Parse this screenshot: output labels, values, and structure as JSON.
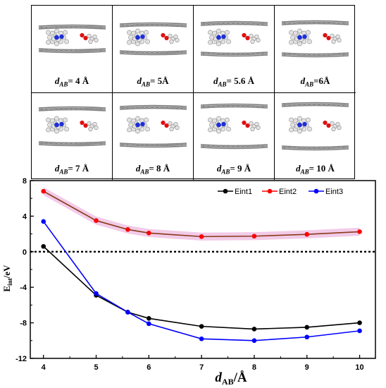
{
  "panels": [
    {
      "prefix": "d",
      "sub": "AB",
      "value": "= 4 Å"
    },
    {
      "prefix": "d",
      "sub": "AB",
      "value": "= 5Å"
    },
    {
      "prefix": "d",
      "sub": "AB",
      "value": "= 5.6 Å"
    },
    {
      "prefix": "d",
      "sub": "AB",
      "value": "=6Å"
    },
    {
      "prefix": "d",
      "sub": "AB",
      "value": "= 7 Å"
    },
    {
      "prefix": "d",
      "sub": "AB",
      "value": "= 8 Å"
    },
    {
      "prefix": "d",
      "sub": "AB",
      "value": "= 9 Å"
    },
    {
      "prefix": "d",
      "sub": "AB",
      "value": "= 10 Å"
    }
  ],
  "chart_data": {
    "type": "line",
    "x": [
      4,
      5,
      5.6,
      6,
      7,
      8,
      9,
      10
    ],
    "series": [
      {
        "name": "Eint1",
        "color": "#000000",
        "values": [
          0.6,
          -4.9,
          -6.8,
          -7.5,
          -8.4,
          -8.7,
          -8.5,
          -8.0
        ]
      },
      {
        "name": "Eint2",
        "color": "#ff0000",
        "values": [
          6.8,
          3.5,
          2.5,
          2.1,
          1.7,
          1.75,
          1.95,
          2.25
        ]
      },
      {
        "name": "Eint3",
        "color": "#0000ff",
        "values": [
          3.4,
          -4.7,
          -6.8,
          -8.1,
          -9.8,
          -10.0,
          -9.6,
          -8.9
        ]
      }
    ],
    "xlabel_main": "d",
    "xlabel_sub": "AB",
    "xlabel_unit": "/Å",
    "ylabel_main": "E",
    "ylabel_sub": "int",
    "ylabel_unit": "/eV",
    "xticks": [
      "4",
      "5",
      "6",
      "7",
      "8",
      "9",
      "10"
    ],
    "yticks": [
      "8",
      "4",
      "0",
      "-4",
      "-8",
      "-12"
    ],
    "xlim": [
      4,
      10
    ],
    "ylim": [
      -12,
      8
    ],
    "reference_line_y": 0,
    "legend_position": "top-right"
  }
}
